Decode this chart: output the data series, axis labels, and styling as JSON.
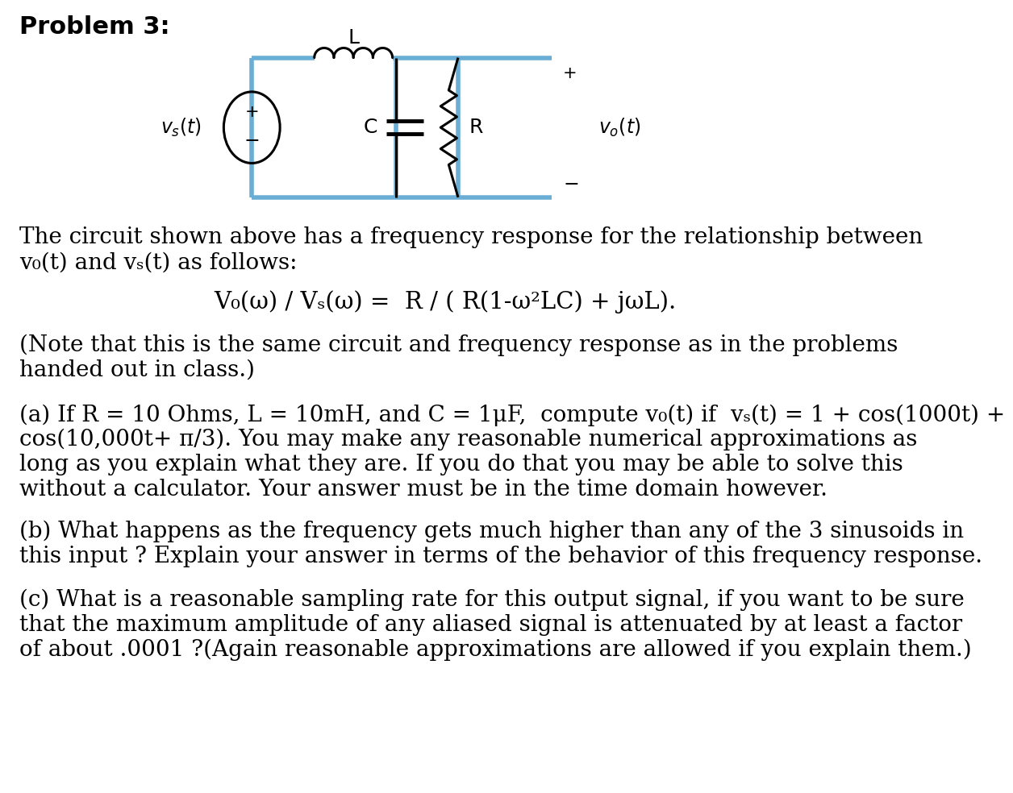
{
  "title": "Problem 3:",
  "bg_color": "#ffffff",
  "circuit_color": "#6aadd5",
  "text_color": "#000000",
  "line1": "The circuit shown above has a frequency response for the relationship between",
  "line2": "v₀(t) and vₛ(t) as follows:",
  "formula": "V₀(ω) / Vₛ(ω) =  R / ( R(1-ω²LC) + jωL).",
  "note_line1": "(Note that this is the same circuit and frequency response as in the problems",
  "note_line2": "handed out in class.)",
  "parta_line1": "(a) If R = 10 Ohms, L = 10mH, and C = 1μF,  compute v₀(t) if  vₛ(t) = 1 + cos(1000t) +",
  "parta_line2": "cos(10,000t+ π/3). You may make any reasonable numerical approximations as",
  "parta_line3": "long as you explain what they are. If you do that you may be able to solve this",
  "parta_line4": "without a calculator. Your answer must be in the time domain however.",
  "partb_line1": "(b) What happens as the frequency gets much higher than any of the 3 sinusoids in",
  "partb_line2": "this input ? Explain your answer in terms of the behavior of this frequency response.",
  "partc_line1": "(c) What is a reasonable sampling rate for this output signal, if you want to be sure",
  "partc_line2": "that the maximum amplitude of any aliased signal is attenuated by at least a factor",
  "partc_line3": "of about .0001 ?(Again reasonable approximations are allowed if you explain them.)",
  "circuit_lw": 4.0,
  "comp_lw": 2.2
}
